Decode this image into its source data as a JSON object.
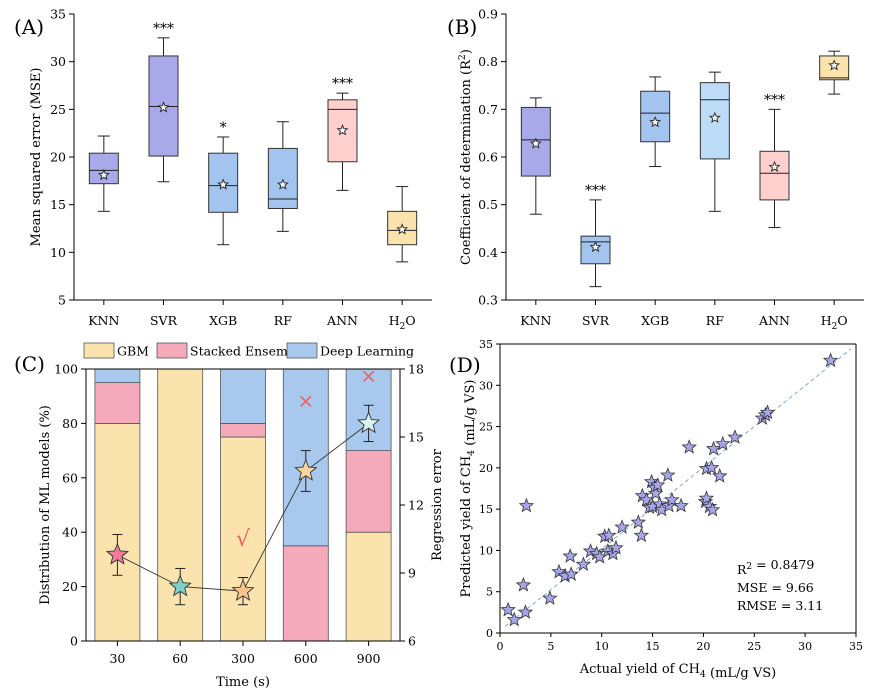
{
  "chart_data": [
    {
      "panel": "(A)",
      "type": "box",
      "ylabel": "Mean squared error (MSE)",
      "ylim": [
        5,
        35
      ],
      "yticks": [
        "5",
        "10",
        "15",
        "20",
        "25",
        "30",
        "35"
      ],
      "categories": [
        "KNN",
        "SVR",
        "XGB",
        "RF",
        "ANN",
        "H2O"
      ],
      "boxes": [
        {
          "min": 14.3,
          "q1": 17.2,
          "median": 18.6,
          "q3": 20.4,
          "max": 22.2,
          "mean": 18.1,
          "color": "#a9a8e8",
          "sig": ""
        },
        {
          "min": 17.4,
          "q1": 20.1,
          "median": 25.3,
          "q3": 30.6,
          "max": 32.5,
          "mean": 25.2,
          "color": "#a9a8e8",
          "sig": "***"
        },
        {
          "min": 10.8,
          "q1": 14.2,
          "median": 17.0,
          "q3": 20.4,
          "max": 22.1,
          "mean": 17.1,
          "color": "#a3c4ee",
          "sig": "*"
        },
        {
          "min": 12.2,
          "q1": 14.6,
          "median": 15.6,
          "q3": 20.9,
          "max": 23.7,
          "mean": 17.1,
          "color": "#a3c4ee",
          "sig": ""
        },
        {
          "min": 16.5,
          "q1": 19.5,
          "median": 25.0,
          "q3": 26.0,
          "max": 26.7,
          "mean": 22.8,
          "color": "#fdd0ce",
          "sig": "***"
        },
        {
          "min": 9.0,
          "q1": 10.8,
          "median": 12.3,
          "q3": 14.3,
          "max": 16.9,
          "mean": 12.4,
          "color": "#fbe3ad",
          "sig": ""
        }
      ]
    },
    {
      "panel": "(B)",
      "type": "box",
      "ylabel": "Coefficient of determination (R2)",
      "ylim": [
        0.3,
        0.9
      ],
      "yticks": [
        "0.3",
        "0.4",
        "0.5",
        "0.6",
        "0.7",
        "0.8",
        "0.9"
      ],
      "categories": [
        "KNN",
        "SVR",
        "XGB",
        "RF",
        "ANN",
        "H2O"
      ],
      "boxes": [
        {
          "min": 0.48,
          "q1": 0.56,
          "median": 0.636,
          "q3": 0.704,
          "max": 0.724,
          "mean": 0.628,
          "color": "#a9a8e8",
          "sig": ""
        },
        {
          "min": 0.328,
          "q1": 0.376,
          "median": 0.422,
          "q3": 0.434,
          "max": 0.51,
          "mean": 0.411,
          "color": "#a3c4ee",
          "sig": "***"
        },
        {
          "min": 0.58,
          "q1": 0.632,
          "median": 0.692,
          "q3": 0.738,
          "max": 0.768,
          "mean": 0.673,
          "color": "#a3c4ee",
          "sig": ""
        },
        {
          "min": 0.486,
          "q1": 0.596,
          "median": 0.72,
          "q3": 0.756,
          "max": 0.778,
          "mean": 0.682,
          "color": "#bcdcf7",
          "sig": ""
        },
        {
          "min": 0.452,
          "q1": 0.51,
          "median": 0.566,
          "q3": 0.612,
          "max": 0.7,
          "mean": 0.579,
          "color": "#fdd0ce",
          "sig": "***"
        },
        {
          "min": 0.732,
          "q1": 0.762,
          "median": 0.766,
          "q3": 0.812,
          "max": 0.822,
          "mean": 0.792,
          "color": "#fbe3ad",
          "sig": ""
        }
      ]
    },
    {
      "panel": "(C)",
      "type": "stacked_bar",
      "xlabel": "Time (s)",
      "ylabel": "Distribution of ML models (%)",
      "y2label": "Regression error",
      "ylim": [
        0,
        100
      ],
      "yticks": [
        "0",
        "20",
        "40",
        "60",
        "80",
        "100"
      ],
      "y2lim": [
        6,
        18
      ],
      "y2ticks": [
        "6",
        "9",
        "12",
        "15",
        "18"
      ],
      "categories": [
        "30",
        "60",
        "300",
        "600",
        "900"
      ],
      "legend": [
        "GBM",
        "Stacked Ensemble",
        "Deep Learning"
      ],
      "colors": [
        "#fbe3ad",
        "#f4aabb",
        "#a9c8ee"
      ],
      "series": [
        {
          "name": "GBM",
          "values": [
            80,
            100,
            75,
            0,
            40
          ]
        },
        {
          "name": "Stacked Ensemble",
          "values": [
            15,
            0,
            5,
            35,
            30
          ]
        },
        {
          "name": "Deep Learning",
          "values": [
            5,
            0,
            20,
            65,
            30
          ]
        }
      ],
      "error_line": {
        "values": [
          9.8,
          8.4,
          8.2,
          13.5,
          15.6
        ],
        "errors": [
          0.9,
          0.8,
          0.6,
          0.9,
          0.8
        ],
        "colors": [
          "#f27a9c",
          "#80d0c8",
          "#f8c48c",
          "#fbd39c",
          "#d9f2f0"
        ]
      },
      "marks": [
        {
          "category": "300",
          "symbol": "√",
          "color": "#f0605e",
          "value": 10.2
        },
        {
          "category": "600",
          "symbol": "×",
          "color": "#f0605e",
          "value": 16.3
        },
        {
          "category": "900",
          "symbol": "×",
          "color": "#f0605e",
          "value": 17.4
        }
      ]
    },
    {
      "panel": "(D)",
      "type": "scatter",
      "xlabel": "Actual yield of CH4 (mL/g VS)",
      "ylabel": "Predicted yield of CH4 (mL/g VS)",
      "xlim": [
        0,
        35
      ],
      "ylim": [
        0,
        35
      ],
      "xticks": [
        "0",
        "5",
        "10",
        "15",
        "20",
        "25",
        "30",
        "35"
      ],
      "yticks": [
        "0",
        "5",
        "10",
        "15",
        "20",
        "25",
        "30",
        "35"
      ],
      "stats": [
        "R2 = 0.8479",
        "MSE = 9.66",
        "RMSE = 3.11"
      ],
      "point_color": "#a7a6ea",
      "points": [
        [
          0.8,
          2.8
        ],
        [
          1.4,
          1.6
        ],
        [
          2.3,
          5.8
        ],
        [
          2.5,
          2.5
        ],
        [
          2.6,
          15.4
        ],
        [
          4.9,
          4.2
        ],
        [
          5.8,
          7.4
        ],
        [
          6.4,
          6.9
        ],
        [
          6.9,
          9.3
        ],
        [
          7.0,
          7.1
        ],
        [
          8.2,
          8.3
        ],
        [
          8.9,
          9.9
        ],
        [
          9.5,
          9.6
        ],
        [
          9.8,
          9.2
        ],
        [
          10.3,
          11.7
        ],
        [
          10.6,
          9.9
        ],
        [
          10.7,
          11.8
        ],
        [
          11.1,
          9.6
        ],
        [
          11.4,
          10.3
        ],
        [
          12.0,
          12.8
        ],
        [
          13.6,
          13.4
        ],
        [
          13.9,
          11.8
        ],
        [
          14.0,
          16.6
        ],
        [
          14.4,
          16.1
        ],
        [
          14.7,
          15.2
        ],
        [
          14.9,
          18.3
        ],
        [
          15.0,
          15.3
        ],
        [
          15.2,
          17.6
        ],
        [
          15.3,
          16.9
        ],
        [
          15.5,
          17.9
        ],
        [
          15.7,
          15.6
        ],
        [
          15.9,
          14.9
        ],
        [
          16.5,
          19.1
        ],
        [
          16.6,
          15.4
        ],
        [
          16.9,
          16.1
        ],
        [
          17.8,
          15.4
        ],
        [
          18.6,
          22.5
        ],
        [
          20.2,
          15.9
        ],
        [
          20.3,
          16.3
        ],
        [
          20.3,
          19.9
        ],
        [
          20.6,
          15.3
        ],
        [
          20.8,
          20.0
        ],
        [
          20.9,
          14.9
        ],
        [
          21.0,
          22.3
        ],
        [
          21.6,
          19.0
        ],
        [
          21.9,
          22.9
        ],
        [
          23.1,
          23.7
        ],
        [
          25.8,
          26.0
        ],
        [
          26.1,
          26.4
        ],
        [
          26.3,
          26.7
        ],
        [
          32.5,
          33.0
        ]
      ],
      "fit_line": [
        [
          0.5,
          0.8
        ],
        [
          34.5,
          34.4
        ]
      ]
    }
  ]
}
